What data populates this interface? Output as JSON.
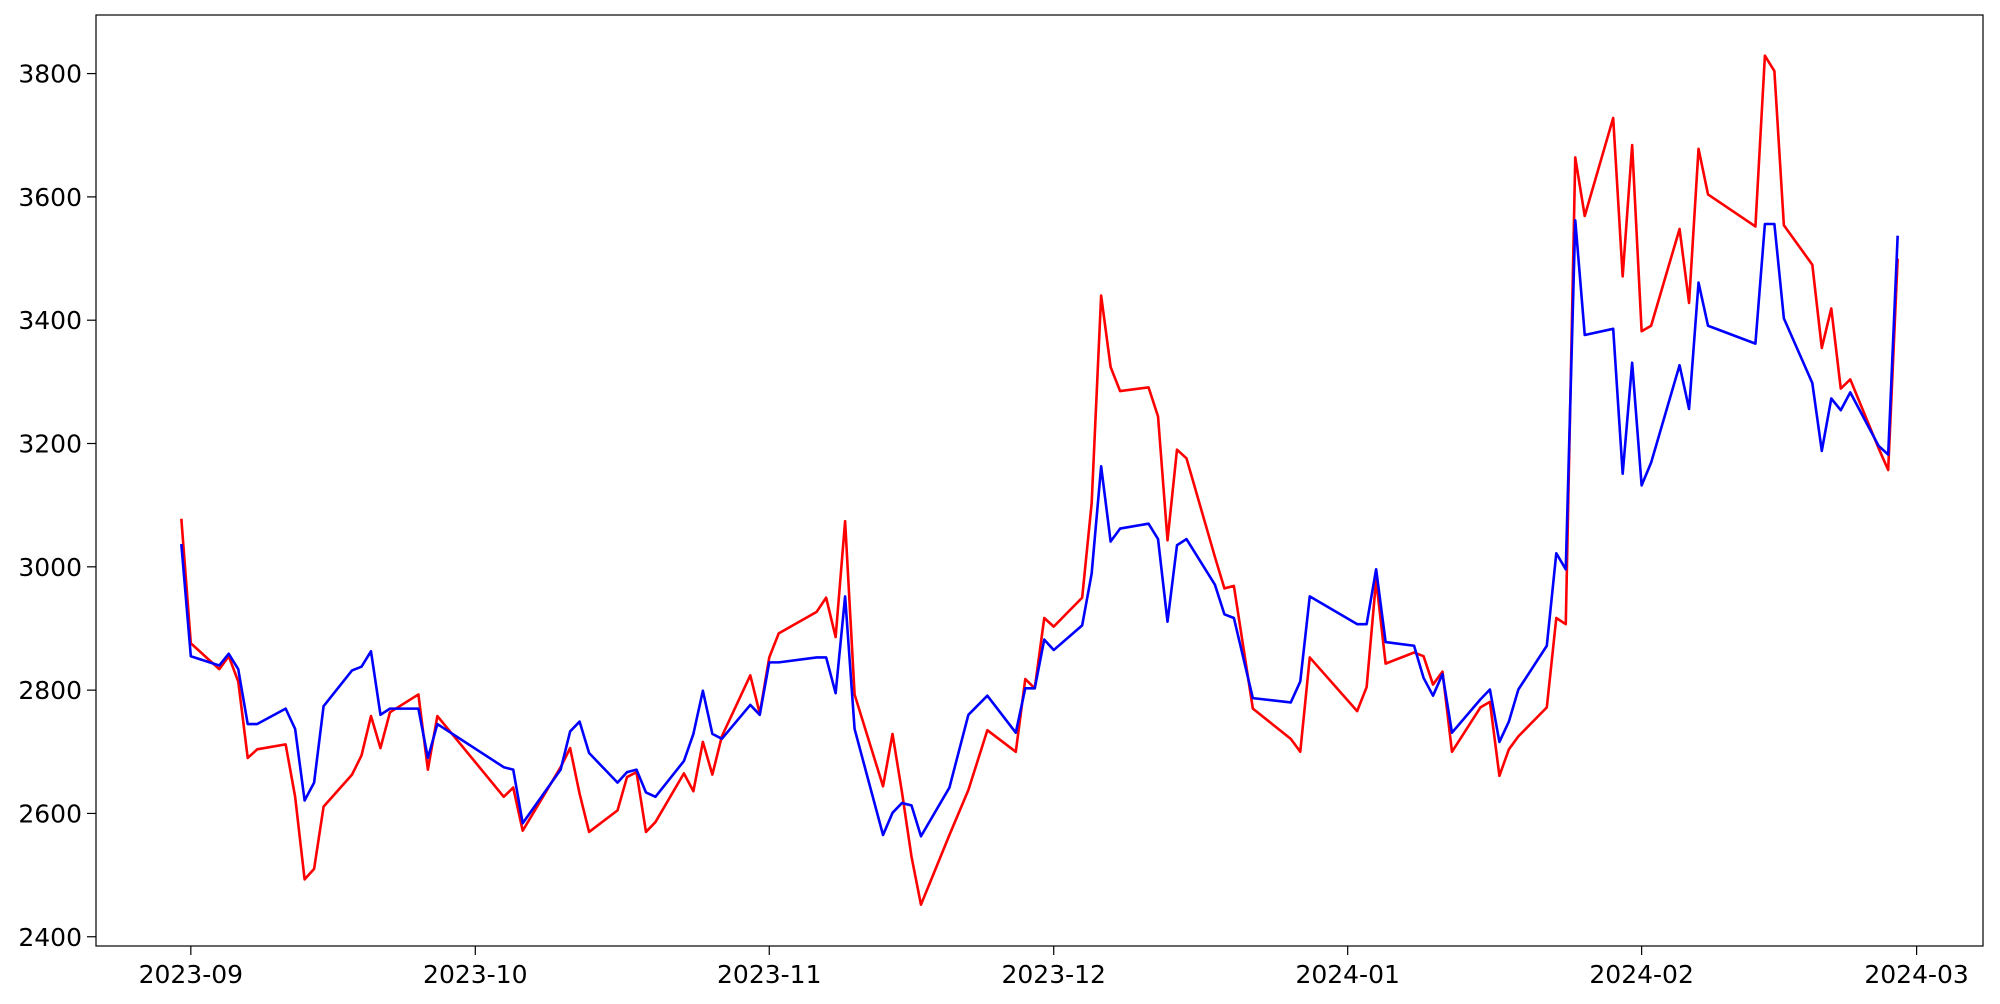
{
  "chart_data": {
    "type": "line",
    "x": [
      "2023-08-31",
      "2023-09-01",
      "2023-09-04",
      "2023-09-05",
      "2023-09-06",
      "2023-09-07",
      "2023-09-08",
      "2023-09-11",
      "2023-09-12",
      "2023-09-13",
      "2023-09-14",
      "2023-09-15",
      "2023-09-18",
      "2023-09-19",
      "2023-09-20",
      "2023-09-21",
      "2023-09-22",
      "2023-09-25",
      "2023-09-26",
      "2023-09-27",
      "2023-10-04",
      "2023-10-05",
      "2023-10-06",
      "2023-10-10",
      "2023-10-11",
      "2023-10-12",
      "2023-10-13",
      "2023-10-16",
      "2023-10-17",
      "2023-10-18",
      "2023-10-19",
      "2023-10-20",
      "2023-10-23",
      "2023-10-24",
      "2023-10-25",
      "2023-10-26",
      "2023-10-27",
      "2023-10-30",
      "2023-10-31",
      "2023-11-01",
      "2023-11-02",
      "2023-11-06",
      "2023-11-07",
      "2023-11-08",
      "2023-11-09",
      "2023-11-10",
      "2023-11-13",
      "2023-11-14",
      "2023-11-15",
      "2023-11-16",
      "2023-11-17",
      "2023-11-20",
      "2023-11-22",
      "2023-11-24",
      "2023-11-27",
      "2023-11-28",
      "2023-11-29",
      "2023-11-30",
      "2023-12-01",
      "2023-12-04",
      "2023-12-05",
      "2023-12-06",
      "2023-12-07",
      "2023-12-08",
      "2023-12-11",
      "2023-12-12",
      "2023-12-13",
      "2023-12-14",
      "2023-12-15",
      "2023-12-18",
      "2023-12-19",
      "2023-12-20",
      "2023-12-22",
      "2023-12-26",
      "2023-12-27",
      "2023-12-28",
      "2024-01-02",
      "2024-01-03",
      "2024-01-04",
      "2024-01-05",
      "2024-01-08",
      "2024-01-09",
      "2024-01-10",
      "2024-01-11",
      "2024-01-12",
      "2024-01-15",
      "2024-01-16",
      "2024-01-17",
      "2024-01-18",
      "2024-01-19",
      "2024-01-22",
      "2024-01-23",
      "2024-01-24",
      "2024-01-25",
      "2024-01-26",
      "2024-01-29",
      "2024-01-30",
      "2024-01-31",
      "2024-02-01",
      "2024-02-02",
      "2024-02-05",
      "2024-02-06",
      "2024-02-07",
      "2024-02-08",
      "2024-02-13",
      "2024-02-14",
      "2024-02-15",
      "2024-02-16",
      "2024-02-19",
      "2024-02-20",
      "2024-02-21",
      "2024-02-22",
      "2024-02-23",
      "2024-02-26",
      "2024-02-27",
      "2024-02-28"
    ],
    "series": [
      {
        "color": "#ff0000",
        "values": [
          3078,
          2876,
          2834,
          2855,
          2814,
          2690,
          2704,
          2712,
          2627,
          2493,
          2510,
          2611,
          2663,
          2694,
          2758,
          2706,
          2764,
          2793,
          2671,
          2758,
          2627,
          2642,
          2572,
          2675,
          2706,
          2632,
          2570,
          2605,
          2659,
          2667,
          2570,
          2586,
          2665,
          2636,
          2716,
          2663,
          2725,
          2824,
          2762,
          2853,
          2892,
          2927,
          2950,
          2886,
          3074,
          2793,
          2644,
          2729,
          2634,
          2530,
          2452,
          2565,
          2638,
          2735,
          2700,
          2818,
          2803,
          2917,
          2903,
          2950,
          3103,
          3440,
          3324,
          3285,
          3291,
          3244,
          3043,
          3190,
          3176,
          3016,
          2965,
          2969,
          2770,
          2721,
          2700,
          2853,
          2766,
          2805,
          2979,
          2843,
          2861,
          2855,
          2809,
          2830,
          2700,
          2772,
          2781,
          2661,
          2704,
          2725,
          2772,
          2917,
          2907,
          3664,
          3569,
          3728,
          3471,
          3684,
          3382,
          3391,
          3548,
          3428,
          3678,
          3604,
          3552,
          3829,
          3804,
          3554,
          3490,
          3355,
          3419,
          3289,
          3304,
          3192,
          3157,
          3500
        ]
      },
      {
        "color": "#0000ff",
        "values": [
          3037,
          2855,
          2840,
          2859,
          2834,
          2745,
          2745,
          2770,
          2737,
          2621,
          2650,
          2774,
          2832,
          2838,
          2863,
          2760,
          2770,
          2770,
          2690,
          2745,
          2675,
          2671,
          2584,
          2671,
          2733,
          2749,
          2698,
          2650,
          2667,
          2671,
          2634,
          2627,
          2685,
          2729,
          2799,
          2729,
          2721,
          2776,
          2760,
          2845,
          2845,
          2853,
          2853,
          2795,
          2952,
          2737,
          2565,
          2601,
          2617,
          2613,
          2563,
          2642,
          2760,
          2791,
          2731,
          2803,
          2803,
          2882,
          2865,
          2905,
          2989,
          3163,
          3041,
          3062,
          3070,
          3045,
          2911,
          3035,
          3045,
          2971,
          2923,
          2917,
          2787,
          2780,
          2814,
          2952,
          2907,
          2907,
          2996,
          2878,
          2872,
          2820,
          2791,
          2826,
          2731,
          2785,
          2801,
          2716,
          2749,
          2801,
          2872,
          3022,
          2996,
          3562,
          3376,
          3386,
          3151,
          3331,
          3132,
          3169,
          3327,
          3256,
          3461,
          3391,
          3362,
          3556,
          3556,
          3403,
          3298,
          3188,
          3273,
          3254,
          3283,
          3196,
          3182,
          3537
        ]
      }
    ],
    "xlim": [
      "2023-08-22",
      "2024-03-08"
    ],
    "xticks": [
      {
        "value": "2023-09-01",
        "label": "2023-09"
      },
      {
        "value": "2023-10-01",
        "label": "2023-10"
      },
      {
        "value": "2023-11-01",
        "label": "2023-11"
      },
      {
        "value": "2023-12-01",
        "label": "2023-12"
      },
      {
        "value": "2024-01-01",
        "label": "2024-01"
      },
      {
        "value": "2024-02-01",
        "label": "2024-02"
      },
      {
        "value": "2024-03-01",
        "label": "2024-03"
      }
    ],
    "ylim": [
      2385,
      3895
    ],
    "yticks": [
      2400,
      2600,
      2800,
      3000,
      3200,
      3400,
      3600,
      3800
    ],
    "grid": false
  }
}
